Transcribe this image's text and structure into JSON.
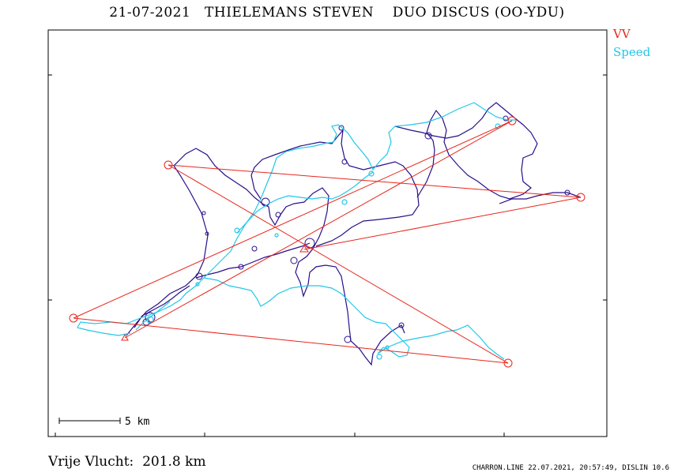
{
  "title": "21-07-2021   THIELEMANS STEVEN    DUO DISCUS (OO-YDU)",
  "legend": {
    "vv": {
      "label": "VV",
      "color": "#e8261c"
    },
    "speed": {
      "label": "Speed",
      "color": "#22c7e8"
    }
  },
  "track_color": "#2a0f8a",
  "scale_bar": {
    "label": "5 km"
  },
  "footer": {
    "distance_text": "Vrije Vlucht:  201.8 km",
    "software_text": "CHARRON.LINE 22.07.2021, 20:57:49, DISLIN 10.6"
  }
}
